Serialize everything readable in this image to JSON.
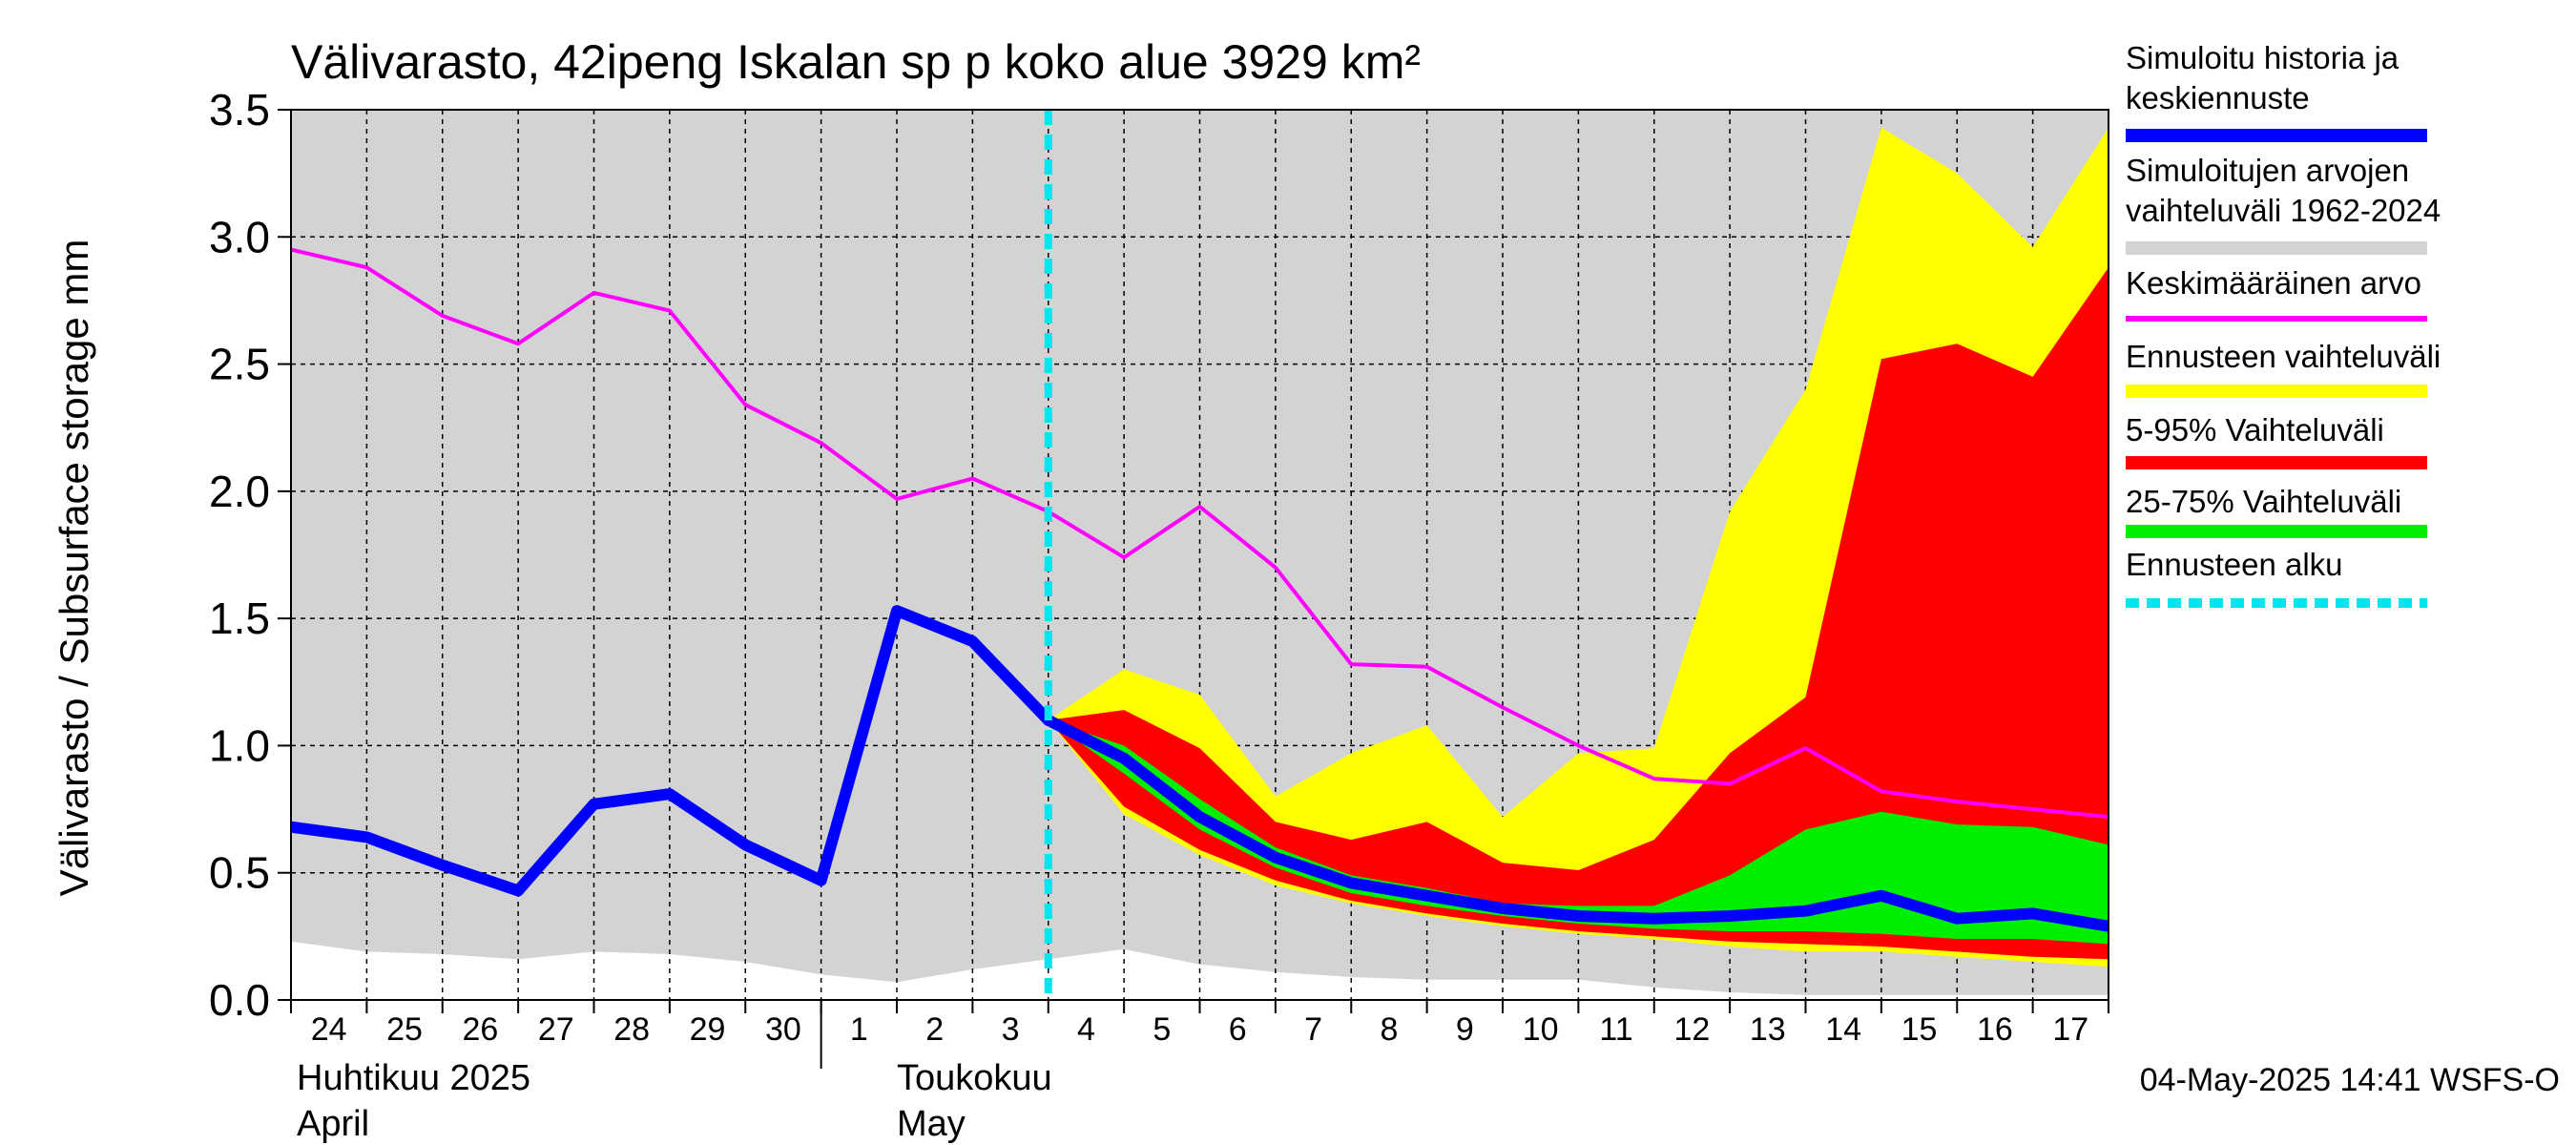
{
  "chart_data": {
    "type": "area",
    "title": "Välivarasto, 42ipeng Iskalan sp p koko alue 3929 km²",
    "ylabel": "Välivarasto / Subsurface storage  mm",
    "ylim": [
      0,
      3.5
    ],
    "y_ticks": [
      "0.0",
      "0.5",
      "1.0",
      "1.5",
      "2.0",
      "2.5",
      "3.0",
      "3.5"
    ],
    "x_tick_labels": [
      "24",
      "25",
      "26",
      "27",
      "28",
      "29",
      "30",
      "1",
      "2",
      "3",
      "4",
      "5",
      "6",
      "7",
      "8",
      "9",
      "10",
      "11",
      "12",
      "13",
      "14",
      "15",
      "16",
      "17"
    ],
    "month_labels": [
      {
        "line1": "Huhtikuu  2025",
        "line2": "April"
      },
      {
        "line1": "Toukokuu",
        "line2": "May"
      }
    ],
    "forecast_start_index": 10,
    "grid": true,
    "legend_position": "right",
    "legend": [
      {
        "label": "Simuloitu historia ja keskiennuste",
        "color": "#0000ff"
      },
      {
        "label": "Simuloitujen arvojen vaihteluväli 1962-2024",
        "color": "#d3d3d3"
      },
      {
        "label": "Keskimääräinen arvo",
        "color": "#ff00ff"
      },
      {
        "label": "Ennusteen vaihteluväli",
        "color": "#ffff00"
      },
      {
        "label": "5-95% Vaihteluväli",
        "color": "#ff0000"
      },
      {
        "label": "25-75% Vaihteluväli",
        "color": "#00ee00"
      },
      {
        "label": "Ennusteen alku",
        "color": "#00e5ee"
      }
    ],
    "series": {
      "historical_range": {
        "low": [
          0.23,
          0.19,
          0.18,
          0.16,
          0.19,
          0.18,
          0.15,
          0.1,
          0.07,
          0.12,
          0.16,
          0.2,
          0.14,
          0.11,
          0.09,
          0.08,
          0.08,
          0.08,
          0.05,
          0.03,
          0.02,
          0.02,
          0.02,
          0.02,
          0.02
        ],
        "high": [
          3.5,
          3.5,
          3.5,
          3.5,
          3.5,
          3.5,
          3.5,
          3.5,
          3.5,
          3.5,
          3.5,
          3.5,
          3.5,
          3.5,
          3.5,
          3.5,
          3.5,
          3.5,
          3.5,
          3.5,
          3.5,
          3.5,
          3.5,
          3.5,
          3.5
        ]
      },
      "mean": [
        2.95,
        2.88,
        2.69,
        2.58,
        2.78,
        2.71,
        2.34,
        2.19,
        1.97,
        2.05,
        1.92,
        1.74,
        1.94,
        1.7,
        1.32,
        1.31,
        1.15,
        1.0,
        0.87,
        0.85,
        0.99,
        0.82,
        0.78,
        0.75,
        0.72
      ],
      "simulated": [
        0.68,
        0.64,
        0.53,
        0.43,
        0.77,
        0.81,
        0.61,
        0.47,
        1.53,
        1.41,
        1.1,
        null,
        null,
        null,
        null,
        null,
        null,
        null,
        null,
        null,
        null,
        null,
        null,
        null,
        null
      ],
      "median_forecast": [
        null,
        null,
        null,
        null,
        null,
        null,
        null,
        null,
        null,
        null,
        1.1,
        0.95,
        0.72,
        0.56,
        0.46,
        0.41,
        0.36,
        0.33,
        0.32,
        0.33,
        0.35,
        0.41,
        0.32,
        0.34,
        0.29
      ],
      "forecast_range": {
        "low": [
          null,
          null,
          null,
          null,
          null,
          null,
          null,
          null,
          null,
          null,
          1.1,
          0.73,
          0.57,
          0.45,
          0.38,
          0.33,
          0.29,
          0.26,
          0.24,
          0.21,
          0.19,
          0.19,
          0.17,
          0.15,
          0.13
        ],
        "high": [
          null,
          null,
          null,
          null,
          null,
          null,
          null,
          null,
          null,
          null,
          1.1,
          1.3,
          1.2,
          0.8,
          0.97,
          1.08,
          0.72,
          0.97,
          0.99,
          1.92,
          2.4,
          3.43,
          3.25,
          2.96,
          3.43
        ]
      },
      "p5_95": {
        "low": [
          null,
          null,
          null,
          null,
          null,
          null,
          null,
          null,
          null,
          null,
          1.1,
          0.76,
          0.59,
          0.47,
          0.39,
          0.34,
          0.3,
          0.27,
          0.25,
          0.23,
          0.22,
          0.21,
          0.19,
          0.17,
          0.16
        ],
        "high": [
          null,
          null,
          null,
          null,
          null,
          null,
          null,
          null,
          null,
          null,
          1.1,
          1.14,
          0.99,
          0.7,
          0.63,
          0.7,
          0.54,
          0.51,
          0.63,
          0.97,
          1.19,
          2.52,
          2.58,
          2.45,
          2.88
        ]
      },
      "p25_75": {
        "low": [
          null,
          null,
          null,
          null,
          null,
          null,
          null,
          null,
          null,
          null,
          1.1,
          0.89,
          0.67,
          0.52,
          0.42,
          0.37,
          0.33,
          0.3,
          0.28,
          0.27,
          0.27,
          0.26,
          0.24,
          0.24,
          0.22
        ],
        "high": [
          null,
          null,
          null,
          null,
          null,
          null,
          null,
          null,
          null,
          null,
          1.1,
          1.0,
          0.79,
          0.6,
          0.49,
          0.44,
          0.38,
          0.37,
          0.37,
          0.49,
          0.67,
          0.74,
          0.69,
          0.68,
          0.61
        ]
      }
    }
  },
  "footer": {
    "timestamp": "04-May-2025 14:41 WSFS-O"
  }
}
